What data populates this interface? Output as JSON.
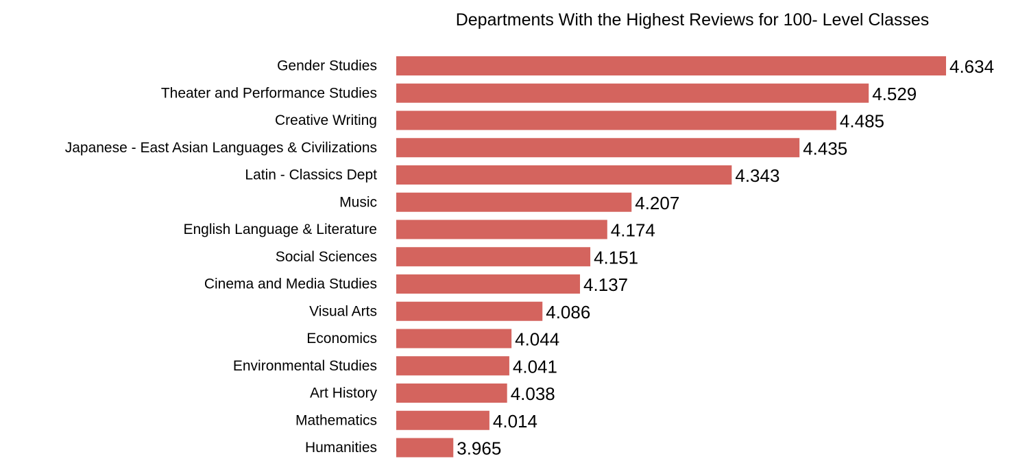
{
  "chart_data": {
    "type": "bar",
    "orientation": "horizontal",
    "title": "Departments With the Highest Reviews for 100- Level Classes",
    "categories": [
      "Gender Studies",
      "Theater and Performance Studies",
      "Creative Writing",
      "Japanese - East Asian Languages & Civilizations",
      "Latin - Classics  Dept",
      "Music",
      "English Language & Literature",
      "Social Sciences",
      "Cinema and Media Studies",
      "Visual Arts",
      "Economics",
      "Environmental Studies",
      "Art History",
      "Mathematics",
      "Humanities"
    ],
    "values": [
      4.634,
      4.529,
      4.485,
      4.435,
      4.343,
      4.207,
      4.174,
      4.151,
      4.137,
      4.086,
      4.044,
      4.041,
      4.038,
      4.014,
      3.965
    ],
    "value_labels": [
      "4.634",
      "4.529",
      "4.485",
      "4.435",
      "4.343",
      "4.207",
      "4.174",
      "4.151",
      "4.137",
      "4.086",
      "4.044",
      "4.041",
      "4.038",
      "4.014",
      "3.965"
    ],
    "xlabel": "",
    "ylabel": "",
    "xlim": [
      3.8875,
      4.634
    ],
    "grid": false,
    "legend": "none",
    "bar_color": "#d4645e"
  }
}
